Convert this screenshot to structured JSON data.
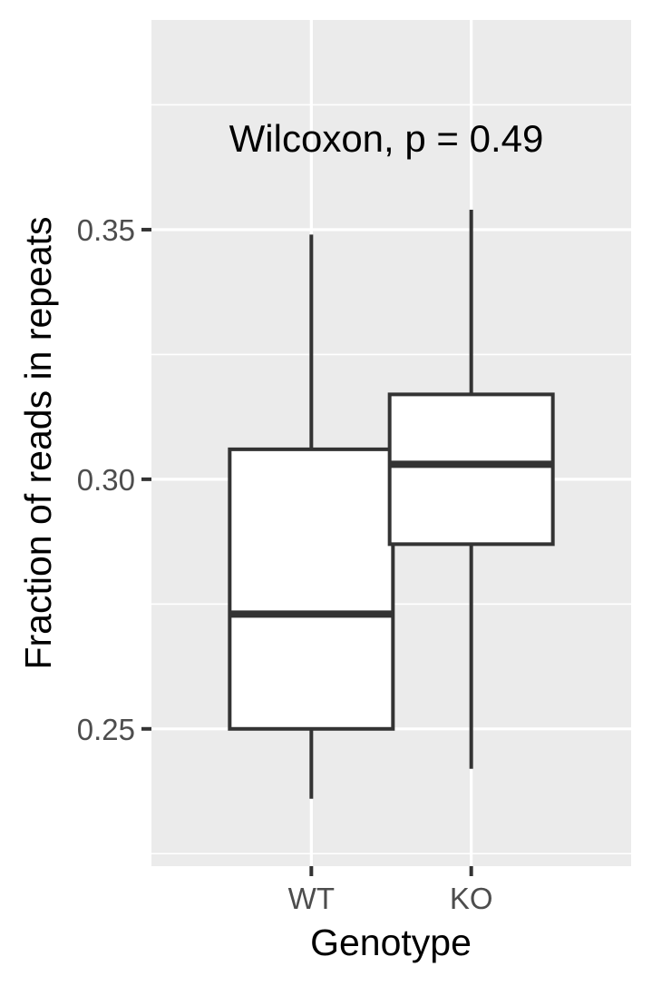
{
  "chart_data": {
    "type": "boxplot",
    "xlabel": "Genotype",
    "ylabel": "Fraction of reads in repeats",
    "annotation": "Wilcoxon, p = 0.49",
    "categories": [
      "WT",
      "KO"
    ],
    "boxes": [
      {
        "category": "WT",
        "whisker_low": 0.236,
        "q1": 0.25,
        "median": 0.273,
        "q3": 0.306,
        "whisker_high": 0.349
      },
      {
        "category": "KO",
        "whisker_low": 0.242,
        "q1": 0.287,
        "median": 0.303,
        "q3": 0.317,
        "whisker_high": 0.354
      }
    ],
    "yticks": [
      0.25,
      0.3,
      0.35
    ],
    "ytick_labels": [
      "0.25",
      "0.30",
      "0.35"
    ],
    "ylim": [
      0.2225,
      0.392
    ],
    "grid": true,
    "colors": {
      "panel_background": "#ebebeb",
      "grid": "#ffffff",
      "box_fill": "#ffffff",
      "box_stroke": "#333333",
      "tick": "#333333"
    }
  }
}
